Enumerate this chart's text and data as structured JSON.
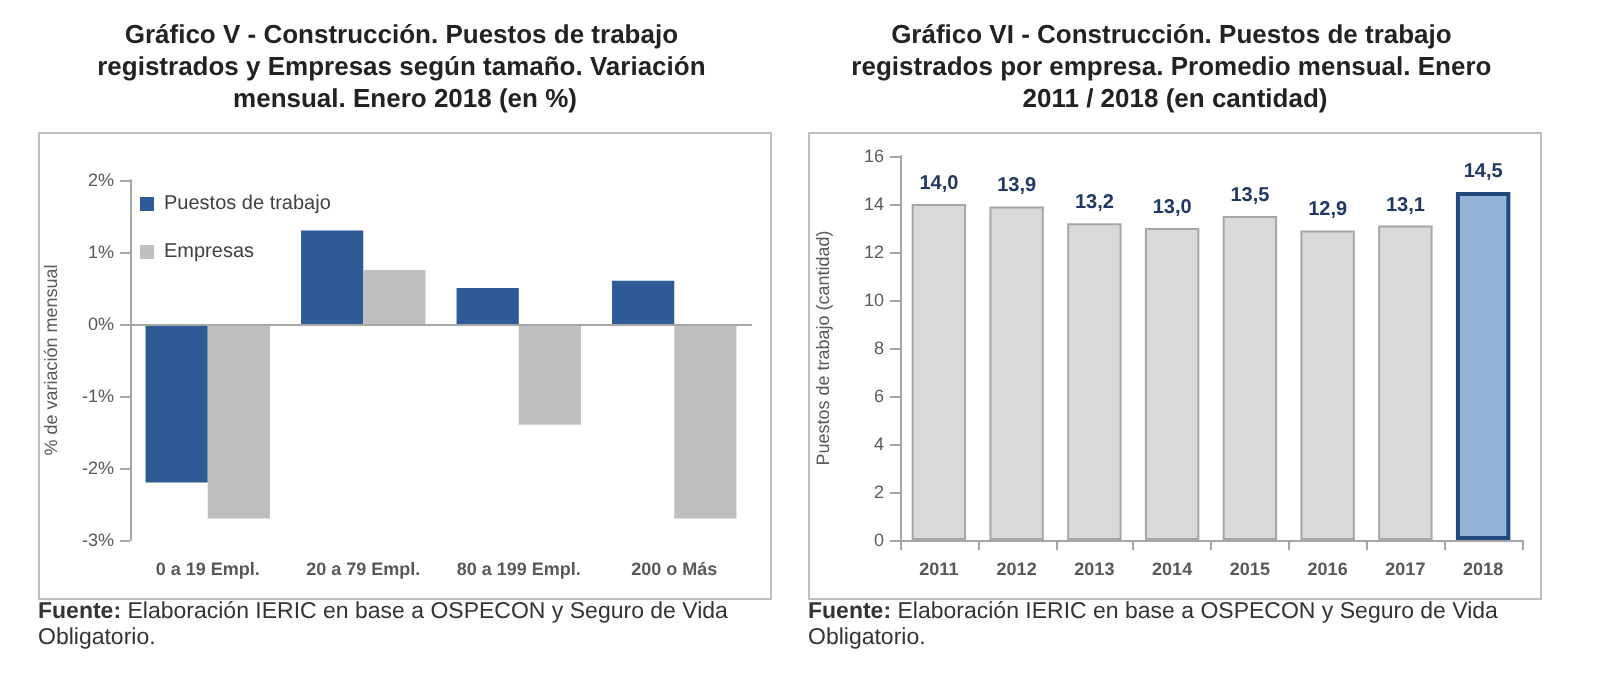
{
  "chart_data": [
    {
      "type": "bar",
      "title": "Gráfico V - Construcción. Puestos de trabajo registrados y Empresas según tamaño. Variación mensual. Enero 2018 (en %)",
      "ylabel": "% de variación mensual",
      "categories": [
        "0 a 19 Empl.",
        "20 a 79 Empl.",
        "80 a 199 Empl.",
        "200 o Más"
      ],
      "series": [
        {
          "name": "Puestos de trabajo",
          "color": "#2e5b95",
          "values": [
            -2.2,
            1.3,
            0.5,
            0.6
          ]
        },
        {
          "name": "Empresas",
          "color": "#bfbfbf",
          "values": [
            -2.7,
            0.75,
            -1.4,
            -2.7
          ]
        }
      ],
      "ylim": [
        -3,
        2
      ],
      "yticks": [
        {
          "value": -3,
          "label": "-3%"
        },
        {
          "value": -2,
          "label": "-2%"
        },
        {
          "value": -1,
          "label": "-1%"
        },
        {
          "value": 0,
          "label": "0%"
        },
        {
          "value": 1,
          "label": "1%"
        },
        {
          "value": 2,
          "label": "2%"
        }
      ],
      "legend": "top left",
      "grid": false,
      "ref_lines": [
        {
          "axis": "y",
          "value": 0,
          "color": "#a6a6a6"
        }
      ],
      "annotations": [
        "Fuente: Elaboración IERIC en base a OSPECON y Seguro de Vida Obligatorio."
      ]
    },
    {
      "type": "bar",
      "title": "Gráfico VI - Construcción. Puestos de trabajo registrados por empresa. Promedio mensual. Enero 2011 / 2018 (en cantidad)",
      "ylabel": "Puestos de trabajo (cantidad)",
      "categories": [
        "2011",
        "2012",
        "2013",
        "2014",
        "2015",
        "2016",
        "2017",
        "2018"
      ],
      "values": [
        14.0,
        13.9,
        13.2,
        13.0,
        13.5,
        12.9,
        13.1,
        14.5
      ],
      "colors": [
        "#d9d9d9",
        "#d9d9d9",
        "#d9d9d9",
        "#d9d9d9",
        "#d9d9d9",
        "#d9d9d9",
        "#d9d9d9",
        "#95b3d7"
      ],
      "value_labels": [
        "14,0",
        "13,9",
        "13,2",
        "13,0",
        "13,5",
        "12,9",
        "13,1",
        "14,5"
      ],
      "ylim": [
        0,
        16
      ],
      "yticks": [
        0,
        2,
        4,
        6,
        8,
        10,
        12,
        14,
        16
      ],
      "legend": false,
      "grid": false,
      "annotations": [
        "Fuente: Elaboración IERIC en base a OSPECON y Seguro de Vida Obligatorio."
      ]
    }
  ]
}
